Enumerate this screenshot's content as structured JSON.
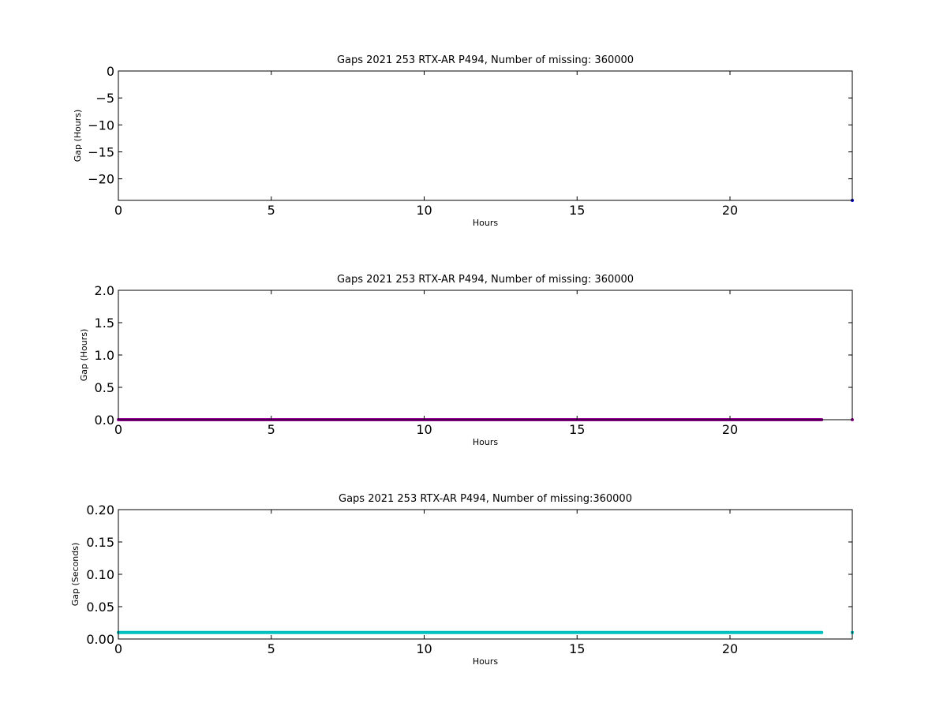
{
  "chart_data": [
    {
      "type": "scatter",
      "title": "Gaps 2021 253 RTX-AR  P494, Number of missing: 360000",
      "xlabel": "Hours",
      "ylabel": "Gap (Hours)",
      "xlim": [
        0,
        24
      ],
      "ylim": [
        -24,
        0
      ],
      "xticks": [
        "0",
        "5",
        "10",
        "15",
        "20"
      ],
      "yticks": [
        "0",
        "−5",
        "−10",
        "−15",
        "−20"
      ],
      "grid": false,
      "color": "#0000bf",
      "series": [
        {
          "points": [
            [
              24.0,
              -24.0
            ]
          ]
        }
      ]
    },
    {
      "type": "line",
      "title": "Gaps 2021 253 RTX-AR  P494, Number of missing: 360000",
      "xlabel": "Hours",
      "ylabel": "Gap (Hours)",
      "xlim": [
        0,
        24
      ],
      "ylim": [
        0,
        2.0
      ],
      "xticks": [
        "0",
        "5",
        "10",
        "15",
        "20"
      ],
      "yticks": [
        "0.0",
        "0.5",
        "1.0",
        "1.5",
        "2.0"
      ],
      "grid": false,
      "color": "#990099",
      "series": [
        {
          "x": [
            0,
            23.0
          ],
          "y": [
            0.0,
            0.0
          ],
          "extra_points": [
            [
              24.0,
              0.0
            ]
          ]
        }
      ]
    },
    {
      "type": "line",
      "title": "Gaps 2021 253 RTX-AR  P494, Number of missing:360000",
      "xlabel": "Hours",
      "ylabel": "Gap (Seconds)",
      "xlim": [
        0,
        24
      ],
      "ylim": [
        0,
        0.2
      ],
      "xticks": [
        "0",
        "5",
        "10",
        "15",
        "20"
      ],
      "yticks": [
        "0.00",
        "0.05",
        "0.10",
        "0.15",
        "0.20"
      ],
      "grid": false,
      "color": "#00bfbf",
      "series": [
        {
          "x": [
            0,
            23.0
          ],
          "y": [
            0.01,
            0.01
          ],
          "extra_points": [
            [
              24.0,
              0.01
            ]
          ]
        }
      ]
    }
  ]
}
